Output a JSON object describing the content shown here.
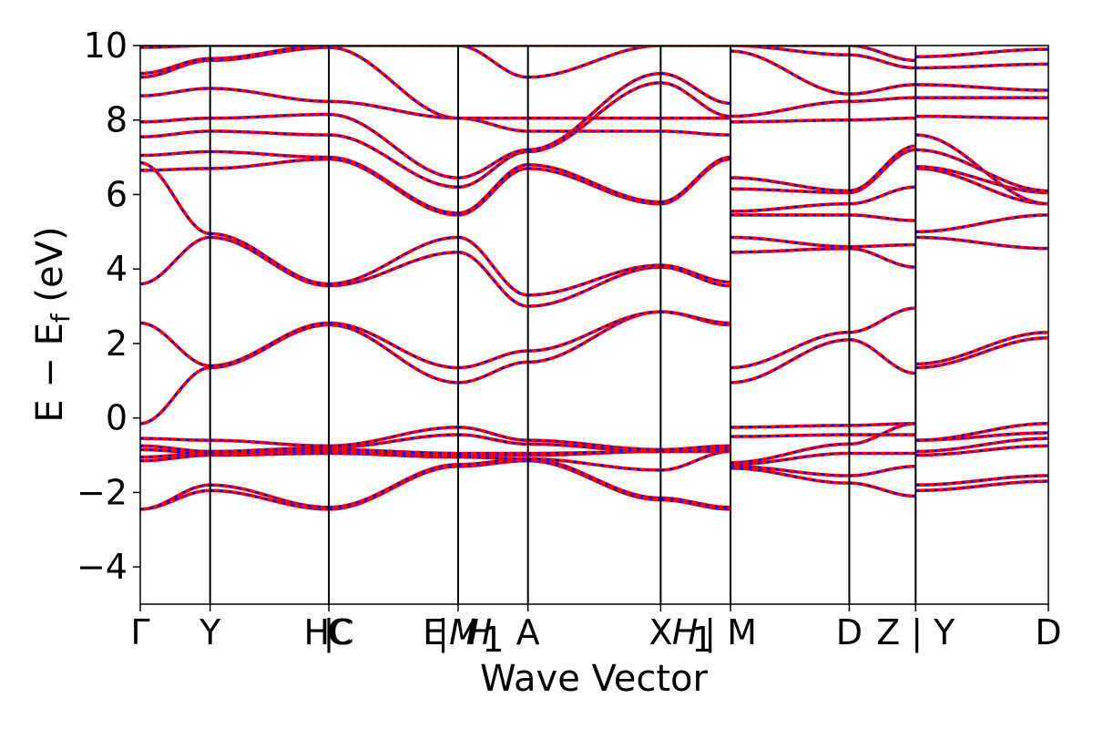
{
  "chart_data": {
    "type": "line",
    "title": "",
    "xlabel": "Wave Vector",
    "ylabel": "E − E",
    "ylabel_subscript": "f",
    "ylabel_unit": " (eV)",
    "ylim": [
      -5,
      10
    ],
    "yticks": [
      -4,
      -2,
      0,
      2,
      4,
      6,
      8,
      10
    ],
    "ytick_labels": [
      "−4",
      "−2",
      "0",
      "2",
      "4",
      "6",
      "8",
      "10"
    ],
    "xlim": [
      0,
      13
    ],
    "kpoint_positions": [
      0,
      1,
      2.7,
      4.55,
      5.55,
      7.45,
      8.45,
      10.15,
      11.1,
      13
    ],
    "kpoint_labels": [
      {
        "pos": 0,
        "text": "Γ",
        "italic": false
      },
      {
        "pos": 1,
        "text": "Y",
        "italic": false
      },
      {
        "pos": 2.7,
        "text": "HC",
        "italic": false
      },
      {
        "pos": 2.7,
        "text": "|",
        "italic": false
      },
      {
        "pos": 2.85,
        "text": "C",
        "italic": false
      },
      {
        "pos": 4.2,
        "text": "E",
        "italic": false
      },
      {
        "pos": 4.55,
        "text": "|M",
        "italic": true
      },
      {
        "pos": 4.85,
        "text": "H",
        "italic": true
      },
      {
        "pos": 5.05,
        "text": "1",
        "italic": false
      },
      {
        "pos": 5.55,
        "text": "A",
        "italic": false
      },
      {
        "pos": 7.45,
        "text": "X",
        "italic": false
      },
      {
        "pos": 7.8,
        "text": "H",
        "italic": true
      },
      {
        "pos": 8.05,
        "text": "1",
        "italic": false
      },
      {
        "pos": 8.45,
        "text": "| M",
        "italic": false
      },
      {
        "pos": 10.15,
        "text": "D",
        "italic": false
      },
      {
        "pos": 11.1,
        "text": "Z | Y",
        "italic": false
      },
      {
        "pos": 13,
        "text": "D",
        "italic": false
      }
    ],
    "series": [
      {
        "style": "spin-up",
        "color": "#ff0000",
        "dash": "solid"
      },
      {
        "style": "spin-down",
        "color": "#0000ff",
        "dash": "dashed"
      }
    ],
    "segments": [
      {
        "x": [
          0,
          1
        ],
        "bands": [
          [
            -2.45,
            -1.95
          ],
          [
            -2.45,
            -1.8
          ],
          [
            -1.15,
            -1.0
          ],
          [
            -1.05,
            -0.95
          ],
          [
            -0.85,
            -0.95
          ],
          [
            -0.75,
            -0.9
          ],
          [
            -0.55,
            -0.6
          ],
          [
            -0.15,
            1.35
          ],
          [
            2.55,
            1.4
          ],
          [
            3.6,
            4.85
          ],
          [
            6.85,
            4.95
          ],
          [
            6.65,
            6.7
          ],
          [
            7.05,
            7.15
          ],
          [
            7.55,
            7.7
          ],
          [
            7.95,
            8.05
          ],
          [
            8.65,
            8.85
          ],
          [
            9.15,
            9.6
          ],
          [
            9.25,
            9.65
          ],
          [
            9.95,
            10.0
          ]
        ]
      },
      {
        "x": [
          1,
          2.7
        ],
        "bands": [
          [
            -1.95,
            -2.45
          ],
          [
            -1.8,
            -2.4
          ],
          [
            -1.0,
            -0.95
          ],
          [
            -0.95,
            -0.9
          ],
          [
            -0.95,
            -0.85
          ],
          [
            -0.9,
            -0.8
          ],
          [
            -0.6,
            -0.75
          ],
          [
            1.35,
            2.5
          ],
          [
            1.4,
            2.55
          ],
          [
            4.85,
            3.55
          ],
          [
            4.95,
            3.6
          ],
          [
            6.7,
            6.95
          ],
          [
            7.15,
            7.0
          ],
          [
            7.7,
            7.6
          ],
          [
            8.05,
            8.15
          ],
          [
            8.85,
            8.5
          ],
          [
            9.6,
            9.95
          ],
          [
            9.65,
            10.0
          ],
          [
            10.0,
            10.0
          ]
        ]
      },
      {
        "x": [
          2.7,
          4.55
        ],
        "bands": [
          [
            -2.45,
            -1.3
          ],
          [
            -2.4,
            -1.25
          ],
          [
            -0.95,
            -1.05
          ],
          [
            -0.9,
            -1.0
          ],
          [
            -0.85,
            -0.95
          ],
          [
            -0.8,
            -0.45
          ],
          [
            -0.75,
            -0.25
          ],
          [
            2.5,
            0.95
          ],
          [
            2.55,
            1.35
          ],
          [
            3.55,
            4.45
          ],
          [
            3.6,
            4.85
          ],
          [
            6.95,
            5.45
          ],
          [
            7.0,
            5.5
          ],
          [
            7.6,
            6.2
          ],
          [
            8.15,
            6.45
          ],
          [
            8.5,
            8.05
          ],
          [
            9.95,
            8.05
          ],
          [
            10.0,
            10.0
          ],
          [
            10.0,
            10.0
          ]
        ]
      },
      {
        "x": [
          4.55,
          5.55
        ],
        "bands": [
          [
            -1.3,
            -1.15
          ],
          [
            -1.25,
            -1.1
          ],
          [
            -1.05,
            -1.1
          ],
          [
            -1.0,
            -1.0
          ],
          [
            -0.95,
            -0.95
          ],
          [
            -0.45,
            -0.7
          ],
          [
            -0.25,
            -0.6
          ],
          [
            0.95,
            1.5
          ],
          [
            1.35,
            1.8
          ],
          [
            4.45,
            3.0
          ],
          [
            4.85,
            3.3
          ],
          [
            5.45,
            6.7
          ],
          [
            5.5,
            6.8
          ],
          [
            6.2,
            7.15
          ],
          [
            6.45,
            7.2
          ],
          [
            8.05,
            7.7
          ],
          [
            8.05,
            8.05
          ],
          [
            10.0,
            9.15
          ],
          [
            10.0,
            10.0
          ]
        ]
      },
      {
        "x": [
          5.55,
          7.45
        ],
        "bands": [
          [
            -1.15,
            -2.2
          ],
          [
            -1.1,
            -2.15
          ],
          [
            -1.1,
            -1.4
          ],
          [
            -1.0,
            -0.9
          ],
          [
            -0.95,
            -0.9
          ],
          [
            -0.7,
            -0.9
          ],
          [
            -0.6,
            -0.85
          ],
          [
            1.5,
            2.85
          ],
          [
            1.8,
            2.85
          ],
          [
            3.0,
            4.05
          ],
          [
            3.3,
            4.1
          ],
          [
            6.7,
            5.75
          ],
          [
            6.8,
            5.8
          ],
          [
            7.15,
            9.0
          ],
          [
            7.2,
            9.25
          ],
          [
            7.7,
            7.7
          ],
          [
            8.05,
            8.05
          ],
          [
            9.15,
            10.0
          ],
          [
            10.0,
            10.0
          ]
        ]
      },
      {
        "x": [
          7.45,
          8.45
        ],
        "bands": [
          [
            -2.2,
            -2.45
          ],
          [
            -2.15,
            -2.4
          ],
          [
            -1.4,
            -0.9
          ],
          [
            -0.9,
            -0.85
          ],
          [
            -0.9,
            -0.8
          ],
          [
            -0.9,
            -0.9
          ],
          [
            -0.85,
            -0.75
          ],
          [
            2.85,
            2.5
          ],
          [
            2.85,
            2.55
          ],
          [
            4.05,
            3.55
          ],
          [
            4.1,
            3.65
          ],
          [
            5.75,
            6.95
          ],
          [
            5.8,
            7.0
          ],
          [
            9.0,
            8.1
          ],
          [
            9.25,
            8.45
          ],
          [
            7.7,
            7.6
          ],
          [
            8.05,
            8.05
          ],
          [
            10.0,
            10.0
          ],
          [
            10.0,
            10.0
          ]
        ]
      },
      {
        "x": [
          8.45,
          10.15
        ],
        "bands": [
          [
            -1.35,
            -1.75
          ],
          [
            -1.3,
            -1.55
          ],
          [
            -1.25,
            -0.95
          ],
          [
            -1.2,
            -0.7
          ],
          [
            -0.5,
            -0.45
          ],
          [
            -0.25,
            -0.2
          ],
          [
            0.95,
            2.1
          ],
          [
            1.35,
            2.3
          ],
          [
            4.45,
            4.55
          ],
          [
            4.85,
            4.6
          ],
          [
            5.45,
            5.45
          ],
          [
            5.55,
            5.75
          ],
          [
            6.15,
            6.05
          ],
          [
            6.45,
            6.1
          ],
          [
            7.95,
            8.0
          ],
          [
            8.1,
            8.5
          ],
          [
            9.85,
            8.7
          ],
          [
            10.0,
            9.75
          ],
          [
            10.0,
            10.0
          ]
        ]
      },
      {
        "x": [
          10.15,
          11.1
        ],
        "bands": [
          [
            -1.75,
            -2.1
          ],
          [
            -1.55,
            -1.3
          ],
          [
            -0.95,
            -0.95
          ],
          [
            -0.7,
            -0.15
          ],
          [
            -0.45,
            -0.45
          ],
          [
            -0.2,
            -0.15
          ],
          [
            2.1,
            1.2
          ],
          [
            2.3,
            2.95
          ],
          [
            4.55,
            4.05
          ],
          [
            4.6,
            4.65
          ],
          [
            5.45,
            5.3
          ],
          [
            5.75,
            6.2
          ],
          [
            6.05,
            7.2
          ],
          [
            6.1,
            7.3
          ],
          [
            8.0,
            8.05
          ],
          [
            8.5,
            8.6
          ],
          [
            8.7,
            8.95
          ],
          [
            9.75,
            9.4
          ],
          [
            10.0,
            9.6
          ]
        ]
      },
      {
        "x": [
          11.1,
          13
        ],
        "bands": [
          [
            -1.95,
            -1.7
          ],
          [
            -1.8,
            -1.55
          ],
          [
            -1.0,
            -0.75
          ],
          [
            -0.9,
            -0.55
          ],
          [
            -0.6,
            -0.4
          ],
          [
            -0.6,
            -0.15
          ],
          [
            1.35,
            2.15
          ],
          [
            1.45,
            2.3
          ],
          [
            4.85,
            4.55
          ],
          [
            5.0,
            5.45
          ],
          [
            6.7,
            5.75
          ],
          [
            6.75,
            6.05
          ],
          [
            7.2,
            6.1
          ],
          [
            7.6,
            5.75
          ],
          [
            8.1,
            8.05
          ],
          [
            8.6,
            8.6
          ],
          [
            8.95,
            8.8
          ],
          [
            9.4,
            9.5
          ],
          [
            9.7,
            9.9
          ]
        ]
      }
    ]
  }
}
